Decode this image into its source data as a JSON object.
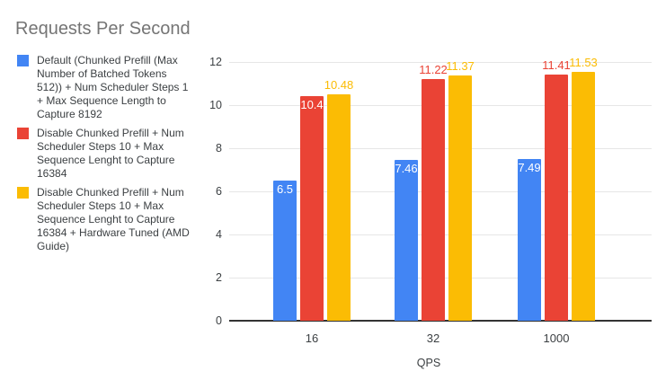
{
  "chart_data": {
    "type": "bar",
    "title": "Requests Per Second",
    "xlabel": "QPS",
    "ylabel": "",
    "ylim": [
      0,
      12
    ],
    "yticks": [
      0,
      2,
      4,
      6,
      8,
      10,
      12
    ],
    "categories": [
      "16",
      "32",
      "1000"
    ],
    "series": [
      {
        "name": "Default (Chunked Prefill (Max Number of Batched Tokens 512)) + Num Scheduler Steps 1 + Max Sequence Length to Capture 8192",
        "color": "#4285F4",
        "values": [
          6.5,
          7.46,
          7.49
        ],
        "label_placement": [
          "inside",
          "inside",
          "inside"
        ]
      },
      {
        "name": "Disable Chunked Prefill + Num Scheduler Steps 10 + Max Sequence Lenght to Capture 16384",
        "color": "#EA4335",
        "values": [
          10.4,
          11.22,
          11.41
        ],
        "label_placement": [
          "inside",
          "above",
          "above"
        ]
      },
      {
        "name": "Disable Chunked Prefill + Num Scheduler Steps 10 + Max Sequence Lenght to Capture 16384 + Hardware Tuned (AMD Guide)",
        "color": "#FBBC04",
        "values": [
          10.48,
          11.37,
          11.53
        ],
        "label_placement": [
          "above",
          "above",
          "above"
        ]
      }
    ],
    "legend_position": "left",
    "grid": true,
    "colors": {
      "title_text": "#757575",
      "label_text": "#3c4043",
      "grid_line": "#e6e6e6",
      "axis_line": "#333333",
      "background": "#ffffff"
    }
  }
}
